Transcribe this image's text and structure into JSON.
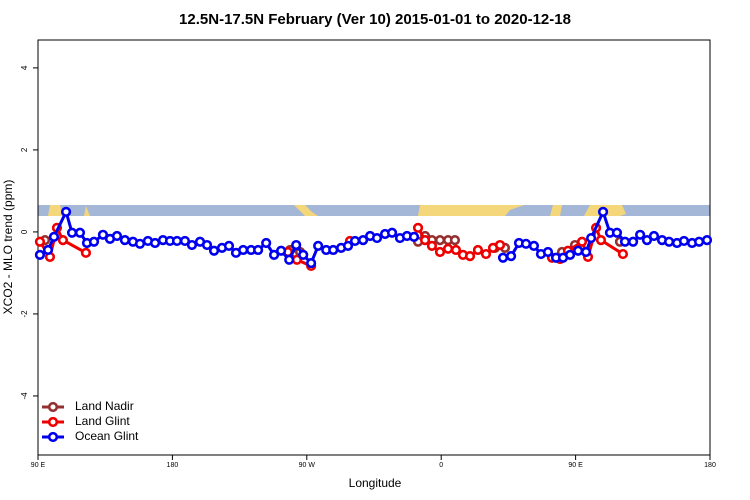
{
  "chart_data": {
    "type": "line",
    "title": "12.5N-17.5N February (Ver 10)   2015-01-01 to 2020-12-18",
    "x_label": "Longitude",
    "y_label": "XCO2 - MLO trend (ppm)",
    "xlim": [
      90,
      540
    ],
    "ylim": [
      -5.44,
      4.68
    ],
    "xticks": [
      {
        "value": 90,
        "label": "90 E"
      },
      {
        "value": 180,
        "label": "180"
      },
      {
        "value": 270,
        "label": "90 W"
      },
      {
        "value": 360,
        "label": "0"
      },
      {
        "value": 450,
        "label": "90 E"
      },
      {
        "value": 540,
        "label": "180"
      }
    ],
    "yticks": [
      4,
      2,
      0,
      -2,
      -4
    ],
    "legend": "bottom-left",
    "series": [
      {
        "name": "Land Nadir",
        "color": "#943030",
        "x": [
          94.7,
          null,
          258.8,
          265.5,
          null,
          344.5,
          349.2,
          353.8,
          359.2,
          364.6,
          369.2,
          null,
          396.0,
          402.7,
          null,
          440.9,
          449.6,
          null,
          479.7
        ],
        "values": [
          -0.2,
          null,
          -0.44,
          -0.49,
          null,
          -0.24,
          -0.1,
          -0.2,
          -0.2,
          -0.2,
          -0.2,
          null,
          -0.39,
          -0.39,
          null,
          -0.49,
          -0.32,
          null,
          -0.24
        ]
      },
      {
        "name": "Land Glint",
        "color": "#ee0000",
        "x": [
          91.3,
          98.0,
          102.7,
          106.7,
          122.1,
          null,
          257.4,
          263.4,
          272.9,
          null,
          298.9,
          null,
          344.5,
          349.2,
          353.8,
          359.2,
          364.6,
          369.9,
          374.6,
          379.3,
          384.6,
          390.0,
          394.7,
          399.4,
          null,
          434.2,
          439.6,
          444.9,
          454.3,
          458.3,
          463.7,
          467.0,
          481.7
        ],
        "values": [
          -0.24,
          -0.61,
          0.1,
          -0.2,
          -0.51,
          null,
          -0.49,
          -0.68,
          -0.83,
          null,
          -0.22,
          null,
          0.1,
          -0.2,
          -0.34,
          -0.49,
          -0.41,
          -0.44,
          -0.56,
          -0.59,
          -0.44,
          -0.54,
          -0.39,
          -0.32,
          null,
          -0.63,
          -0.66,
          -0.46,
          -0.24,
          -0.61,
          0.1,
          -0.2,
          -0.54
        ]
      },
      {
        "name": "Ocean Glint",
        "color": "#0000ee",
        "x": [
          91.3,
          96.7,
          100.7,
          108.8,
          112.8,
          118.1,
          122.8,
          127.5,
          133.5,
          138.2,
          142.9,
          148.2,
          153.6,
          158.3,
          163.6,
          168.4,
          173.7,
          178.4,
          183.1,
          188.4,
          193.1,
          198.5,
          203.2,
          207.9,
          213.2,
          217.9,
          222.6,
          227.4,
          232.7,
          237.4,
          242.8,
          248.1,
          252.8,
          258.2,
          262.9,
          267.6,
          272.9,
          277.6,
          283.0,
          287.7,
          293.0,
          297.6,
          302.3,
          307.7,
          312.4,
          317.0,
          322.4,
          327.1,
          332.4,
          337.1,
          341.8,
          null,
          401.4,
          406.8,
          412.1,
          416.8,
          422.1,
          426.8,
          431.5,
          436.9,
          441.6,
          446.3,
          451.7,
          457.0,
          460.4,
          468.4,
          473.0,
          477.7,
          483.1,
          488.5,
          493.2,
          497.8,
          502.5,
          507.9,
          512.6,
          517.9,
          522.6,
          528.0,
          532.7,
          538.0
        ],
        "values": [
          -0.56,
          -0.44,
          -0.12,
          0.49,
          -0.02,
          -0.02,
          -0.27,
          -0.24,
          -0.07,
          -0.17,
          -0.1,
          -0.2,
          -0.24,
          -0.29,
          -0.22,
          -0.27,
          -0.2,
          -0.22,
          -0.22,
          -0.22,
          -0.32,
          -0.24,
          -0.32,
          -0.46,
          -0.39,
          -0.34,
          -0.51,
          -0.44,
          -0.44,
          -0.44,
          -0.27,
          -0.56,
          -0.46,
          -0.68,
          -0.32,
          -0.56,
          -0.76,
          -0.34,
          -0.44,
          -0.44,
          -0.39,
          -0.34,
          -0.22,
          -0.2,
          -0.1,
          -0.15,
          -0.05,
          -0.02,
          -0.15,
          -0.1,
          -0.12,
          null,
          -0.63,
          -0.59,
          -0.27,
          -0.29,
          -0.34,
          -0.54,
          -0.49,
          -0.63,
          -0.63,
          -0.56,
          -0.46,
          -0.49,
          -0.15,
          0.49,
          -0.02,
          -0.02,
          -0.24,
          -0.24,
          -0.07,
          -0.2,
          -0.1,
          -0.2,
          -0.24,
          -0.27,
          -0.22,
          -0.27,
          -0.24,
          -0.2
        ]
      }
    ]
  }
}
